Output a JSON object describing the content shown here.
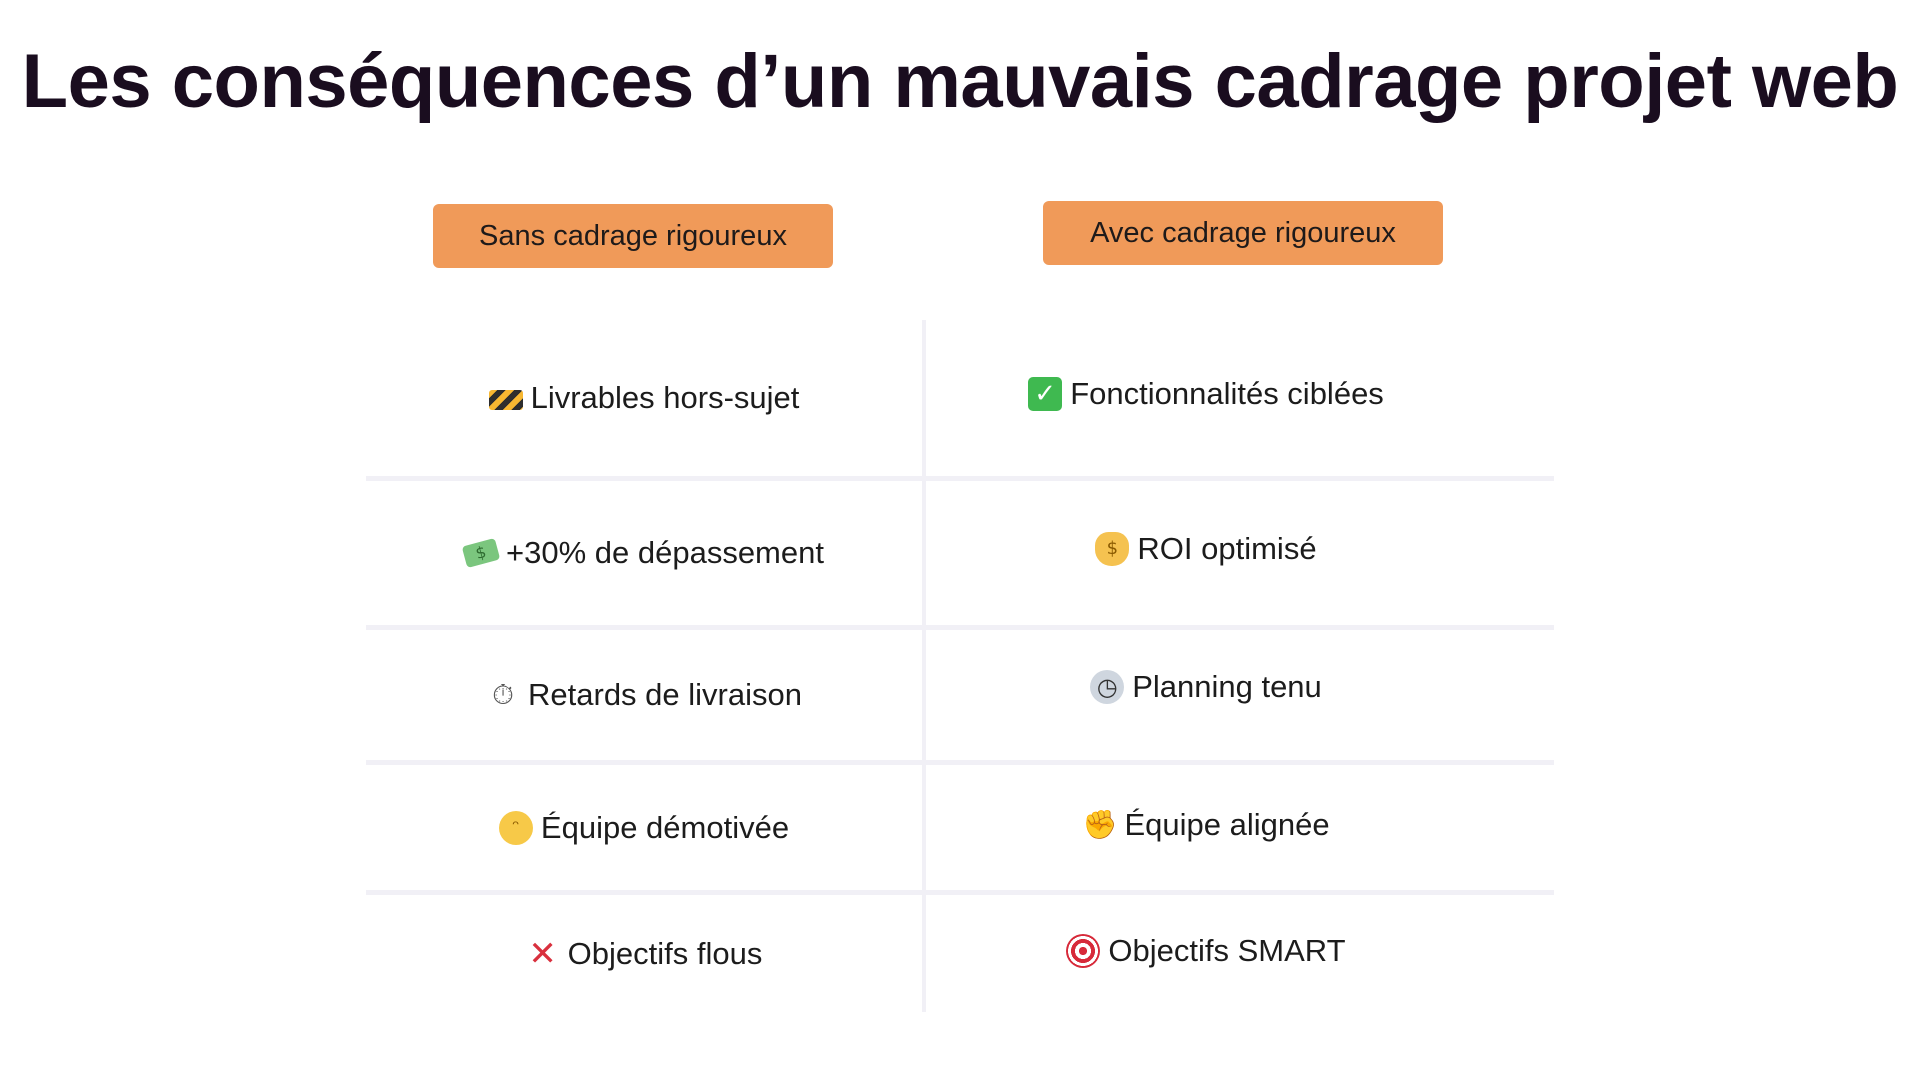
{
  "title": "Les conséquences d’un mauvais cadrage projet web",
  "columns": {
    "left": "Sans cadrage rigoureux",
    "right": "Avec cadrage rigoureux"
  },
  "rows": [
    {
      "left": {
        "icon": "construction-barrier-icon",
        "text": "Livrables hors-sujet"
      },
      "right": {
        "icon": "check-mark-icon",
        "text": "Fonctionnalités ciblées"
      }
    },
    {
      "left": {
        "icon": "money-flying-icon",
        "text": "+30% de dépassement"
      },
      "right": {
        "icon": "money-bag-icon",
        "text": "ROI optimisé"
      }
    },
    {
      "left": {
        "icon": "stopwatch-icon",
        "text": "Retards de livraison"
      },
      "right": {
        "icon": "clock-icon",
        "text": "Planning tenu"
      }
    },
    {
      "left": {
        "icon": "frustrated-face-icon",
        "text": "Équipe démotivée"
      },
      "right": {
        "icon": "flexed-arm-icon",
        "text": "Équipe alignée"
      }
    },
    {
      "left": {
        "icon": "red-cross-icon",
        "text": "Objectifs flous"
      },
      "right": {
        "icon": "target-icon",
        "text": "Objectifs SMART"
      }
    }
  ]
}
